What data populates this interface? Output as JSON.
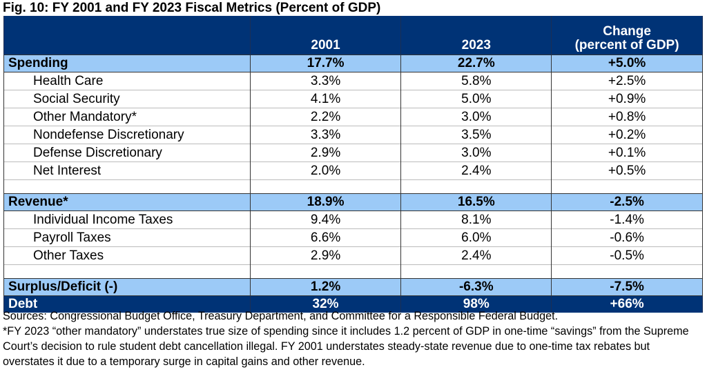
{
  "title": "Fig. 10: FY 2001 and FY 2023 Fiscal Metrics (Percent of GDP)",
  "header": {
    "label": "",
    "col1": "2001",
    "col2": "2023",
    "col3_line1": "Change",
    "col3_line2": "(percent of GDP)"
  },
  "rows": [
    {
      "type": "sec",
      "label": "Spending",
      "v2001": "17.7%",
      "v2023": "22.7%",
      "change": "+5.0%"
    },
    {
      "type": "item",
      "label": "Health Care",
      "v2001": "3.3%",
      "v2023": "5.8%",
      "change": "+2.5%"
    },
    {
      "type": "item",
      "label": "Social Security",
      "v2001": "4.1%",
      "v2023": "5.0%",
      "change": "+0.9%"
    },
    {
      "type": "item",
      "label": "Other Mandatory*",
      "v2001": "2.2%",
      "v2023": "3.0%",
      "change": "+0.8%"
    },
    {
      "type": "item",
      "label": "Nondefense Discretionary",
      "v2001": "3.3%",
      "v2023": "3.5%",
      "change": "+0.2%"
    },
    {
      "type": "item",
      "label": "Defense Discretionary",
      "v2001": "2.9%",
      "v2023": "3.0%",
      "change": "+0.1%"
    },
    {
      "type": "item",
      "label": "Net Interest",
      "v2001": "2.0%",
      "v2023": "2.4%",
      "change": "+0.5%"
    },
    {
      "type": "blank"
    },
    {
      "type": "sec",
      "label": "Revenue*",
      "v2001": "18.9%",
      "v2023": "16.5%",
      "change": "-2.5%"
    },
    {
      "type": "item",
      "label": "Individual Income Taxes",
      "v2001": "9.4%",
      "v2023": "8.1%",
      "change": "-1.4%"
    },
    {
      "type": "item",
      "label": "Payroll Taxes",
      "v2001": "6.6%",
      "v2023": "6.0%",
      "change": "-0.6%"
    },
    {
      "type": "item",
      "label": "Other Taxes",
      "v2001": "2.9%",
      "v2023": "2.4%",
      "change": "-0.5%"
    },
    {
      "type": "blank"
    },
    {
      "type": "sec",
      "label": "Surplus/Deficit (-)",
      "v2001": "1.2%",
      "v2023": "-6.3%",
      "change": "-7.5%"
    },
    {
      "type": "debt",
      "label": "Debt",
      "v2001": "32%",
      "v2023": "98%",
      "change": "+66%"
    }
  ],
  "notes": [
    "Sources: Congressional Budget Office, Treasury Department, and Committee for a Responsible Federal Budget.",
    "*FY 2023 “other mandatory” understates true size of spending since it includes 1.2 percent of GDP in one-time “savings” from the Supreme Court’s decision to rule student debt cancellation illegal. FY 2001 understates steady-state revenue due to one-time tax rebates but overstates it due to a temporary surge in capital gains and other revenue."
  ],
  "colors": {
    "navy": "#003376",
    "light_blue": "#9ccaf7"
  }
}
